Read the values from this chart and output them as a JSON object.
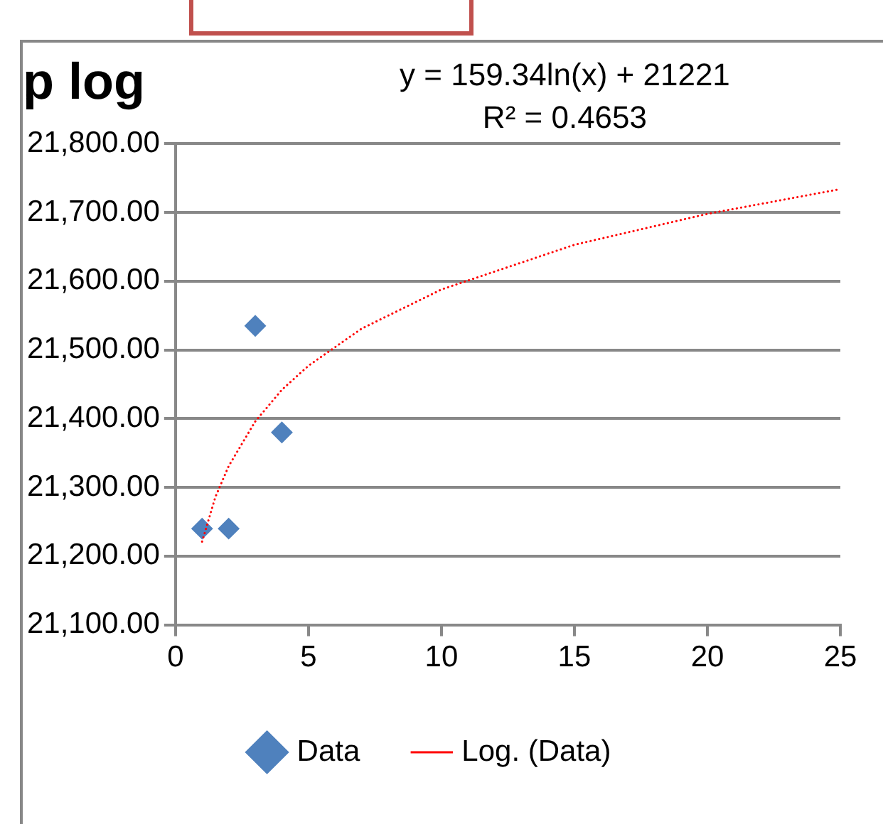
{
  "chart_data": {
    "type": "scatter",
    "title": "p log",
    "annotations": [
      "y = 159.34ln(x) + 21221",
      "R² = 0.4653"
    ],
    "series": [
      {
        "name": "Data",
        "type": "scatter",
        "color": "#4f81bd",
        "marker": "diamond",
        "x": [
          1,
          2,
          3,
          4
        ],
        "values": [
          21240,
          21240,
          21535,
          21380
        ]
      },
      {
        "name": "Log. (Data)",
        "type": "line",
        "color": "#ff0000",
        "marker": "none",
        "line_style": "dotted",
        "x": [
          1,
          1.5,
          2,
          3,
          4,
          5,
          7,
          10,
          15,
          20,
          25
        ],
        "values": [
          21221,
          21286,
          21331,
          21396,
          21442,
          21477,
          21531,
          21588,
          21653,
          21698,
          21734
        ]
      }
    ],
    "xlim": [
      0,
      25
    ],
    "xticks": [
      0,
      5,
      10,
      15,
      20,
      25
    ],
    "ylim": [
      21100,
      21800
    ],
    "yticks": [
      {
        "value": 21100,
        "label": "21,100.00"
      },
      {
        "value": 21200,
        "label": "21,200.00"
      },
      {
        "value": 21300,
        "label": "21,300.00"
      },
      {
        "value": 21400,
        "label": "21,400.00"
      },
      {
        "value": 21500,
        "label": "21,500.00"
      },
      {
        "value": 21600,
        "label": "21,600.00"
      },
      {
        "value": 21700,
        "label": "21,700.00"
      },
      {
        "value": 21800,
        "label": "21,800.00"
      }
    ],
    "grid": "y",
    "legend": "bottom"
  }
}
